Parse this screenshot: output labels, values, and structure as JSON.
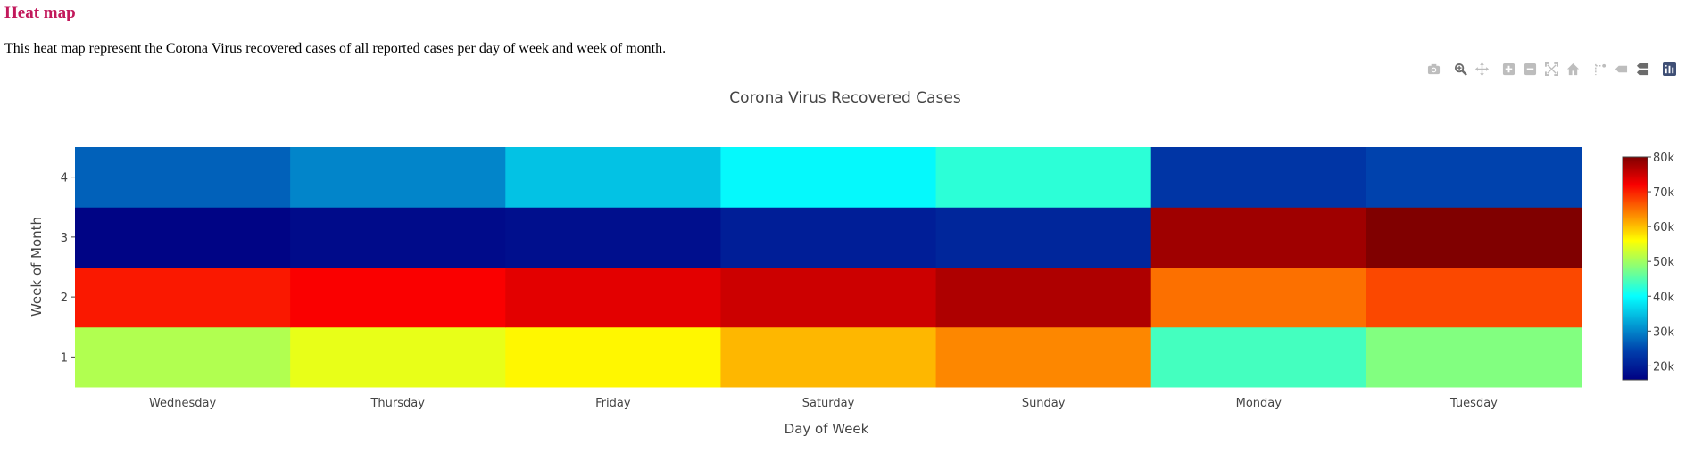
{
  "heading": "Heat map",
  "description": "This heat map represent the Corona Virus recovered cases of all reported cases per day of week and week of month.",
  "modebar": {
    "buttons": [
      {
        "name": "camera-icon",
        "color": "#bdbdbd"
      },
      {
        "name": "zoom-icon",
        "color": "#6b6b6b"
      },
      {
        "name": "pan-icon",
        "color": "#bdbdbd"
      },
      {
        "name": "zoom-in-icon",
        "color": "#bdbdbd"
      },
      {
        "name": "zoom-out-icon",
        "color": "#bdbdbd"
      },
      {
        "name": "autoscale-icon",
        "color": "#bdbdbd"
      },
      {
        "name": "home-icon",
        "color": "#bdbdbd"
      },
      {
        "name": "spike-lines-icon",
        "color": "#bdbdbd"
      },
      {
        "name": "hover-closest-icon",
        "color": "#bdbdbd"
      },
      {
        "name": "hover-compare-icon",
        "color": "#6b6b6b"
      },
      {
        "name": "plotly-logo-icon",
        "color": "#3f4f75"
      }
    ]
  },
  "chart_data": {
    "type": "heatmap",
    "title": "Corona Virus Recovered Cases",
    "xlabel": "Day of Week",
    "ylabel": "Week of Month",
    "x": [
      "Wednesday",
      "Thursday",
      "Friday",
      "Saturday",
      "Sunday",
      "Monday",
      "Tuesday"
    ],
    "y": [
      1,
      2,
      3,
      4
    ],
    "z": [
      [
        51000,
        54500,
        56500,
        60500,
        63500,
        44000,
        48000
      ],
      [
        70500,
        72000,
        73500,
        75000,
        77000,
        65000,
        67500
      ],
      [
        16500,
        17500,
        18000,
        20000,
        21000,
        78000,
        80000
      ],
      [
        27000,
        30000,
        35000,
        39500,
        42500,
        23000,
        24500
      ]
    ],
    "colorscale": "Jet",
    "zmin": 16000,
    "zmax": 80000,
    "colorbar": {
      "ticks": [
        20000,
        30000,
        40000,
        50000,
        60000,
        70000,
        80000
      ],
      "ticktext": [
        "20k",
        "30k",
        "40k",
        "50k",
        "60k",
        "70k",
        "80k"
      ]
    }
  }
}
